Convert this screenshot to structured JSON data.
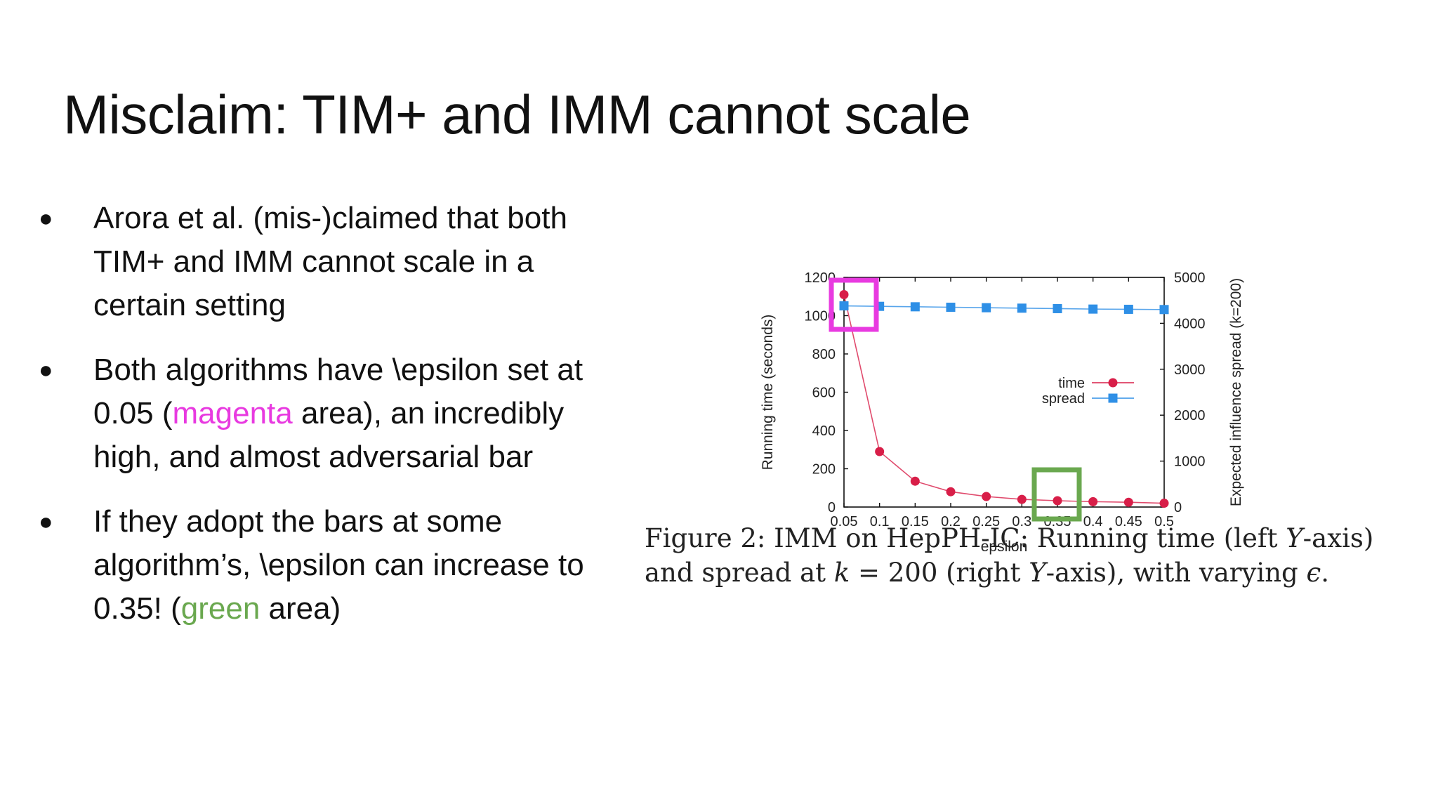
{
  "slide": {
    "title": "Misclaim: TIM+ and IMM cannot scale",
    "bullets": [
      {
        "text_before": "Arora et al. (mis-)claimed that both TIM+ and IMM cannot scale in a certain setting"
      },
      {
        "text_before": "Both algorithms have \\epsilon set at 0.05 (",
        "highlight": "magenta",
        "text_after": " area), an incredibly high, and almost adversarial bar"
      },
      {
        "text_before": "If they adopt the bars at some algorithm’s,  \\epsilon can increase to 0.35! (",
        "highlight": "green",
        "text_after": " area)"
      }
    ],
    "highlight_colors": {
      "magenta": "#e83ae0",
      "green": "#6aa84f"
    }
  },
  "figure": {
    "caption_prefix": "Figure 2:  IMM  on  HepPH-IC:  Running  time  (left ",
    "caption_y1": "Y",
    "caption_mid": "-axis)",
    "caption_line2a": "and spread at ",
    "caption_k": "k",
    "caption_line2b": " = 200 (right ",
    "caption_y2": "Y",
    "caption_line2c": "-axis), with varying ",
    "caption_eps": "ϵ",
    "caption_end": "."
  },
  "chart_data": {
    "type": "line",
    "xlabel": "epsilon",
    "ylabel_left": "Running time (seconds)",
    "ylabel_right": "Expected influence spread (k=200)",
    "x": [
      0.05,
      0.1,
      0.15,
      0.2,
      0.25,
      0.3,
      0.35,
      0.4,
      0.45,
      0.5
    ],
    "x_ticks": [
      "0.05",
      "0.1",
      "0.15",
      "0.2",
      "0.25",
      "0.3",
      "0.35",
      "0.4",
      "0.45",
      "0.5"
    ],
    "xlim": [
      0.05,
      0.5
    ],
    "ylim_left": [
      0,
      1200
    ],
    "y_ticks_left": [
      "0",
      "200",
      "400",
      "600",
      "800",
      "1000",
      "1200"
    ],
    "ylim_right": [
      0,
      5000
    ],
    "y_ticks_right": [
      "0",
      "1000",
      "2000",
      "3000",
      "4000",
      "5000"
    ],
    "series": [
      {
        "name": "time",
        "axis": "left",
        "color": "#d81e48",
        "marker": "circle",
        "values": [
          1110,
          290,
          135,
          80,
          55,
          40,
          33,
          28,
          25,
          20
        ]
      },
      {
        "name": "spread",
        "axis": "right",
        "color": "#2e8fe6",
        "marker": "square",
        "values": [
          4380,
          4370,
          4360,
          4350,
          4340,
          4330,
          4320,
          4310,
          4305,
          4300
        ]
      }
    ],
    "legend_position": "right-middle",
    "annotations": [
      {
        "type": "box",
        "color": "#e83ae0",
        "x": 0.05,
        "label_ref": "magenta"
      },
      {
        "type": "box",
        "color": "#6aa84f",
        "x": 0.35,
        "label_ref": "green"
      }
    ]
  }
}
